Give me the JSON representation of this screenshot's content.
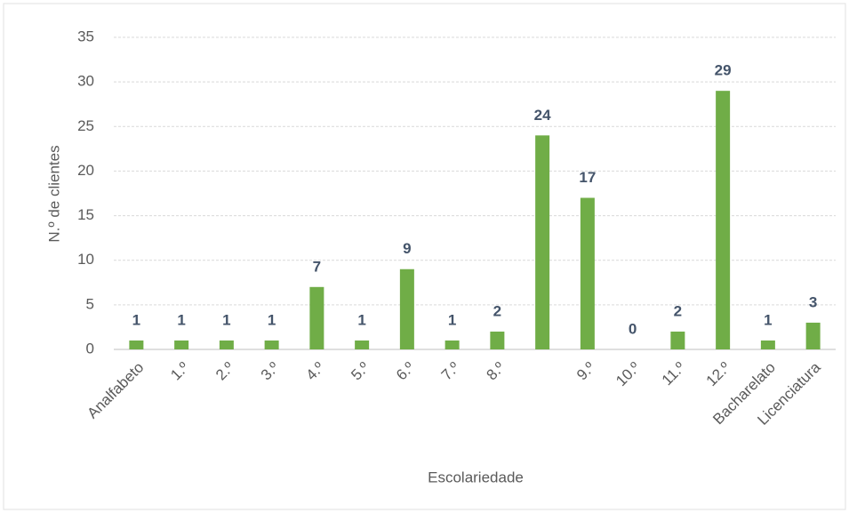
{
  "chart_data": {
    "type": "bar",
    "categories": [
      "Analfabeto",
      "1.º",
      "2.º",
      "3.º",
      "4.º",
      "5.º",
      "6.º",
      "7.º",
      "8.º",
      null,
      "9.º",
      "10.º",
      "11.º",
      "12.º",
      "Bacharelato",
      "Licenciatura"
    ],
    "values": [
      1,
      1,
      1,
      1,
      7,
      1,
      9,
      1,
      2,
      24,
      17,
      0,
      2,
      29,
      1,
      3
    ],
    "color": "#70ad47",
    "ylim": [
      0,
      35
    ],
    "yticks": [
      0,
      5,
      10,
      15,
      20,
      25,
      30,
      35
    ],
    "grid": true,
    "ylabel": "N.º de clientes",
    "xlabel": "Escolariedade"
  }
}
